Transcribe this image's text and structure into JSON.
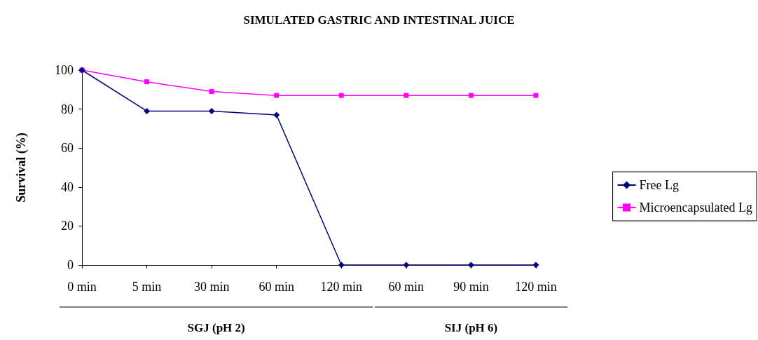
{
  "chart_data": {
    "type": "line",
    "title": "SIMULATED GASTRIC AND INTESTINAL JUICE",
    "ylabel": "Survival (%)",
    "categories": [
      "0 min",
      "5 min",
      "30 min",
      "60 min",
      "120 min",
      "60 min",
      "90 min",
      "120 min"
    ],
    "series": [
      {
        "name": "Free Lg",
        "color": "#000080",
        "marker": "diamond",
        "values": [
          100,
          79,
          79,
          77,
          0,
          0,
          0,
          0
        ]
      },
      {
        "name": "Microencapsulated Lg",
        "color": "#ff00ff",
        "marker": "square",
        "values": [
          100,
          94,
          89,
          87,
          87,
          87,
          87,
          87
        ]
      }
    ],
    "annotations": [
      "SGJ (pH 2)",
      "SIJ (pH 6)"
    ],
    "ylim": [
      0,
      100
    ],
    "yticks": [
      0,
      20,
      40,
      60,
      80,
      100
    ],
    "grid": false,
    "legend": "right"
  }
}
